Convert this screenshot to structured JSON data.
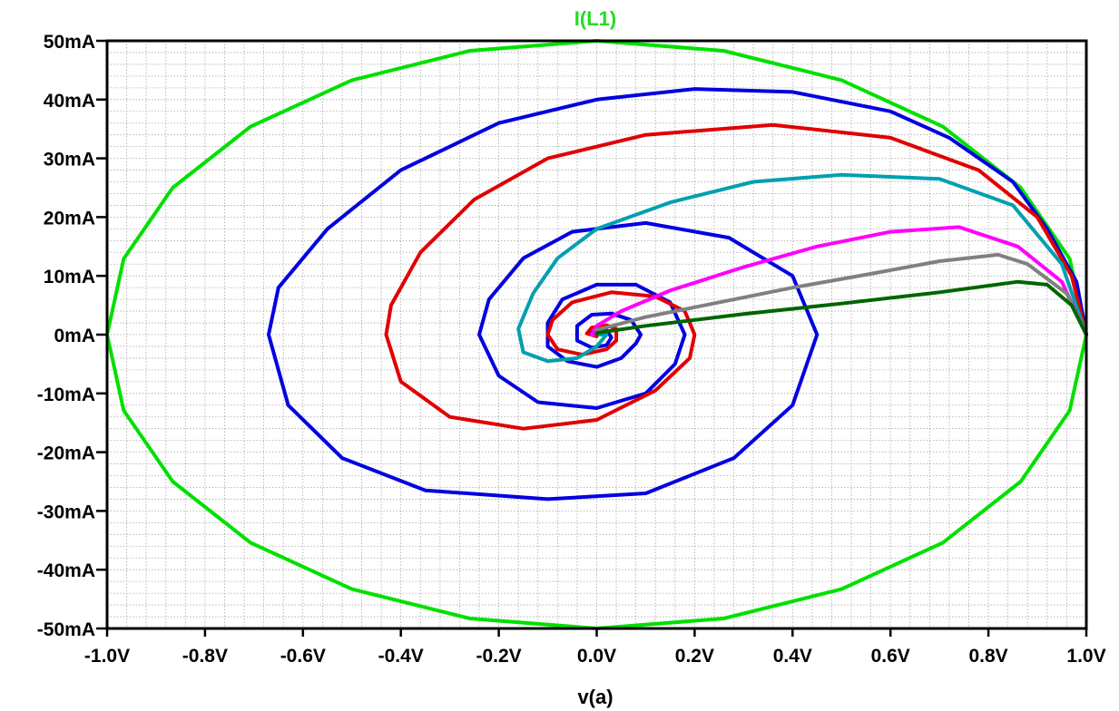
{
  "chart_data": {
    "type": "line",
    "title": "I(L1)",
    "xlabel": "v(a)",
    "ylabel": "",
    "xlim": [
      -1.0,
      1.0
    ],
    "ylim": [
      -50,
      50
    ],
    "x_ticks": [
      -1.0,
      -0.8,
      -0.6,
      -0.4,
      -0.2,
      0.0,
      0.2,
      0.4,
      0.6,
      0.8,
      1.0
    ],
    "x_tick_labels": [
      "-1.0V",
      "-0.8V",
      "-0.6V",
      "-0.4V",
      "-0.2V",
      "0.0V",
      "0.2V",
      "0.4V",
      "0.6V",
      "0.8V",
      "1.0V"
    ],
    "y_ticks": [
      50,
      40,
      30,
      20,
      10,
      0,
      -10,
      -20,
      -30,
      -40,
      -50
    ],
    "y_tick_labels": [
      "50mA",
      "40mA",
      "30mA",
      "20mA",
      "10mA",
      "0mA",
      "-10mA",
      "-20mA",
      "-30mA",
      "-40mA",
      "-50mA"
    ],
    "grid": true,
    "y_unit": "mA",
    "x_unit": "V",
    "series": [
      {
        "color": "#00e000",
        "points": [
          [
            1.0,
            0
          ],
          [
            0.966,
            12.9
          ],
          [
            0.866,
            25
          ],
          [
            0.707,
            35.4
          ],
          [
            0.5,
            43.3
          ],
          [
            0.259,
            48.3
          ],
          [
            0,
            50
          ],
          [
            -0.259,
            48.3
          ],
          [
            -0.5,
            43.3
          ],
          [
            -0.707,
            35.4
          ],
          [
            -0.866,
            25
          ],
          [
            -0.966,
            12.9
          ],
          [
            -1.0,
            0
          ],
          [
            -0.966,
            -12.9
          ],
          [
            -0.866,
            -25
          ],
          [
            -0.707,
            -35.4
          ],
          [
            -0.5,
            -43.3
          ],
          [
            -0.259,
            -48.3
          ],
          [
            0,
            -50
          ],
          [
            0.259,
            -48.3
          ],
          [
            0.5,
            -43.3
          ],
          [
            0.707,
            -35.4
          ],
          [
            0.866,
            -25
          ],
          [
            0.966,
            -12.9
          ],
          [
            1.0,
            0
          ]
        ]
      },
      {
        "color": "#0000e0",
        "points": [
          [
            1.0,
            0
          ],
          [
            0.98,
            9
          ],
          [
            0.92,
            18
          ],
          [
            0.85,
            26
          ],
          [
            0.72,
            33.5
          ],
          [
            0.6,
            38
          ],
          [
            0.4,
            41.3
          ],
          [
            0.2,
            41.8
          ],
          [
            0.0,
            40
          ],
          [
            -0.2,
            36
          ],
          [
            -0.4,
            28
          ],
          [
            -0.55,
            18
          ],
          [
            -0.65,
            8
          ],
          [
            -0.67,
            0
          ],
          [
            -0.63,
            -12
          ],
          [
            -0.52,
            -21
          ],
          [
            -0.35,
            -26.5
          ],
          [
            -0.1,
            -28
          ],
          [
            0.1,
            -27
          ],
          [
            0.28,
            -21
          ],
          [
            0.4,
            -12
          ],
          [
            0.45,
            0
          ],
          [
            0.4,
            10
          ],
          [
            0.27,
            16.5
          ],
          [
            0.1,
            19
          ],
          [
            -0.05,
            17.5
          ],
          [
            -0.15,
            13
          ],
          [
            -0.22,
            6
          ],
          [
            -0.24,
            0
          ],
          [
            -0.2,
            -7
          ],
          [
            -0.12,
            -11.5
          ],
          [
            0.0,
            -12.5
          ],
          [
            0.1,
            -10
          ],
          [
            0.16,
            -5
          ],
          [
            0.18,
            0
          ],
          [
            0.15,
            5.5
          ],
          [
            0.08,
            8.5
          ],
          [
            0.0,
            8.5
          ],
          [
            -0.07,
            6
          ],
          [
            -0.1,
            2
          ],
          [
            -0.1,
            -2
          ],
          [
            -0.06,
            -4.5
          ],
          [
            0.0,
            -5.5
          ],
          [
            0.05,
            -4
          ],
          [
            0.08,
            -1.5
          ],
          [
            0.09,
            0
          ],
          [
            0.07,
            2.5
          ],
          [
            0.03,
            3.6
          ],
          [
            -0.01,
            3.4
          ],
          [
            -0.04,
            1.5
          ],
          [
            -0.04,
            -1
          ],
          [
            -0.01,
            -2.2
          ],
          [
            0.02,
            -1.8
          ],
          [
            0.03,
            -0.5
          ],
          [
            0.02,
            0.8
          ],
          [
            0.0,
            1
          ],
          [
            -0.01,
            0.3
          ],
          [
            0,
            0
          ]
        ]
      },
      {
        "color": "#e00000",
        "points": [
          [
            1.0,
            0
          ],
          [
            0.97,
            10
          ],
          [
            0.9,
            20
          ],
          [
            0.78,
            28
          ],
          [
            0.6,
            33.5
          ],
          [
            0.36,
            35.7
          ],
          [
            0.1,
            34
          ],
          [
            -0.1,
            30
          ],
          [
            -0.25,
            23
          ],
          [
            -0.36,
            14
          ],
          [
            -0.42,
            5
          ],
          [
            -0.43,
            0
          ],
          [
            -0.4,
            -8
          ],
          [
            -0.3,
            -14
          ],
          [
            -0.15,
            -16
          ],
          [
            0.0,
            -14.5
          ],
          [
            0.12,
            -9.5
          ],
          [
            0.19,
            -4
          ],
          [
            0.2,
            0
          ],
          [
            0.18,
            4
          ],
          [
            0.12,
            6.5
          ],
          [
            0.03,
            7.2
          ],
          [
            -0.05,
            5.5
          ],
          [
            -0.09,
            2.5
          ],
          [
            -0.1,
            0
          ],
          [
            -0.08,
            -2.5
          ],
          [
            -0.03,
            -3.4
          ],
          [
            0.02,
            -2.5
          ],
          [
            0.04,
            -1
          ],
          [
            0.04,
            1
          ],
          [
            0.02,
            1.6
          ],
          [
            -0.01,
            1.2
          ],
          [
            -0.02,
            0.2
          ],
          [
            0,
            -0.3
          ],
          [
            0,
            0
          ]
        ]
      },
      {
        "color": "#00a0b0",
        "points": [
          [
            1.0,
            0
          ],
          [
            0.95,
            12
          ],
          [
            0.85,
            22
          ],
          [
            0.7,
            26.5
          ],
          [
            0.5,
            27.2
          ],
          [
            0.32,
            26
          ],
          [
            0.15,
            22.5
          ],
          [
            0.0,
            18
          ],
          [
            -0.08,
            13
          ],
          [
            -0.13,
            7
          ],
          [
            -0.16,
            1
          ],
          [
            -0.15,
            -3
          ],
          [
            -0.1,
            -4.5
          ],
          [
            -0.04,
            -4
          ],
          [
            0.0,
            -2
          ],
          [
            0.02,
            0
          ],
          [
            0,
            0
          ]
        ]
      },
      {
        "color": "#ff00ff",
        "points": [
          [
            1.0,
            0
          ],
          [
            0.95,
            9
          ],
          [
            0.86,
            15
          ],
          [
            0.74,
            18.3
          ],
          [
            0.6,
            17.5
          ],
          [
            0.45,
            15
          ],
          [
            0.3,
            11.5
          ],
          [
            0.15,
            7.5
          ],
          [
            0.05,
            4
          ],
          [
            0.0,
            1.5
          ],
          [
            -0.01,
            0
          ],
          [
            0,
            0
          ]
        ]
      },
      {
        "color": "#808080",
        "points": [
          [
            1.0,
            0
          ],
          [
            0.96,
            7
          ],
          [
            0.88,
            12
          ],
          [
            0.82,
            13.6
          ],
          [
            0.7,
            12.5
          ],
          [
            0.55,
            10.2
          ],
          [
            0.4,
            8
          ],
          [
            0.25,
            5.5
          ],
          [
            0.1,
            3
          ],
          [
            0.0,
            0.8
          ],
          [
            0,
            0
          ]
        ]
      },
      {
        "color": "#006400",
        "points": [
          [
            1.0,
            0
          ],
          [
            0.97,
            5
          ],
          [
            0.92,
            8.5
          ],
          [
            0.86,
            9
          ],
          [
            0.7,
            7.2
          ],
          [
            0.5,
            5.3
          ],
          [
            0.3,
            3.5
          ],
          [
            0.1,
            1.5
          ],
          [
            0.0,
            0.3
          ],
          [
            0,
            0
          ]
        ]
      }
    ]
  }
}
